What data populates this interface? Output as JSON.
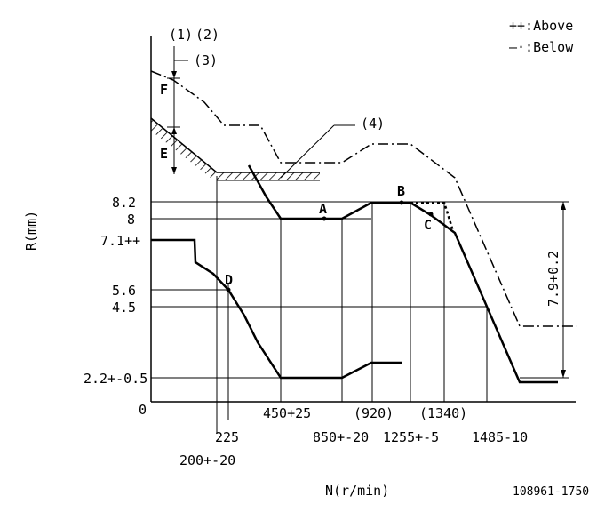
{
  "legend": {
    "above": "++:Above",
    "below": "—·:Below"
  },
  "markers": {
    "m1": "(1)",
    "m2": "(2)",
    "m3": "(3)",
    "m4": "(4)",
    "F": "F",
    "E": "E",
    "A": "A",
    "B": "B",
    "C": "C",
    "D": "D"
  },
  "axes": {
    "y_title": "R(mm)",
    "x_title": "N(r/min)",
    "origin": "0",
    "y_ticks": [
      "8.2",
      "8",
      "7.1++",
      "5.6",
      "4.5",
      "2.2+-0.5"
    ],
    "x_ticks": [
      "200+-20",
      "225",
      "450+25",
      "850+-20",
      "(920)",
      "1255+-5",
      "(1340)",
      "1485-10"
    ]
  },
  "annotations": {
    "range": "7.9+0.2"
  },
  "footer": {
    "code": "108961-1750"
  }
}
